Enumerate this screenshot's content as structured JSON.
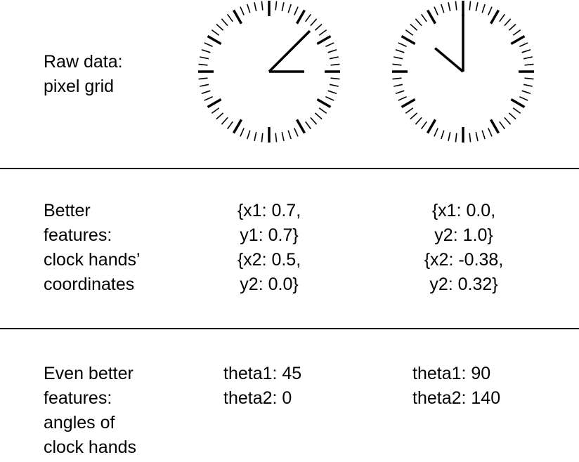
{
  "rows": [
    {
      "label_lines": [
        "Raw data:",
        "pixel grid"
      ],
      "clocks": [
        {
          "hour_hand_angle_deg": 0,
          "minute_hand_angle_deg": 45
        },
        {
          "hour_hand_angle_deg": 140,
          "minute_hand_angle_deg": 90
        }
      ]
    },
    {
      "label_lines": [
        "Better",
        "features:",
        "clock hands’",
        "coordinates"
      ],
      "values": [
        [
          "{x1: 0.7,",
          "y1: 0.7}",
          "{x2: 0.5,",
          "y2: 0.0}"
        ],
        [
          "{x1: 0.0,",
          "y2: 1.0}",
          "{x2: -0.38,",
          "y2: 0.32}"
        ]
      ]
    },
    {
      "label_lines": [
        "Even better",
        "features:",
        "angles of",
        "clock hands"
      ],
      "values": [
        [
          "theta1: 45",
          "theta2: 0"
        ],
        [
          "theta1: 90",
          "theta2: 140"
        ]
      ]
    }
  ],
  "colors": {
    "ink": "#000000",
    "background": "#ffffff"
  }
}
